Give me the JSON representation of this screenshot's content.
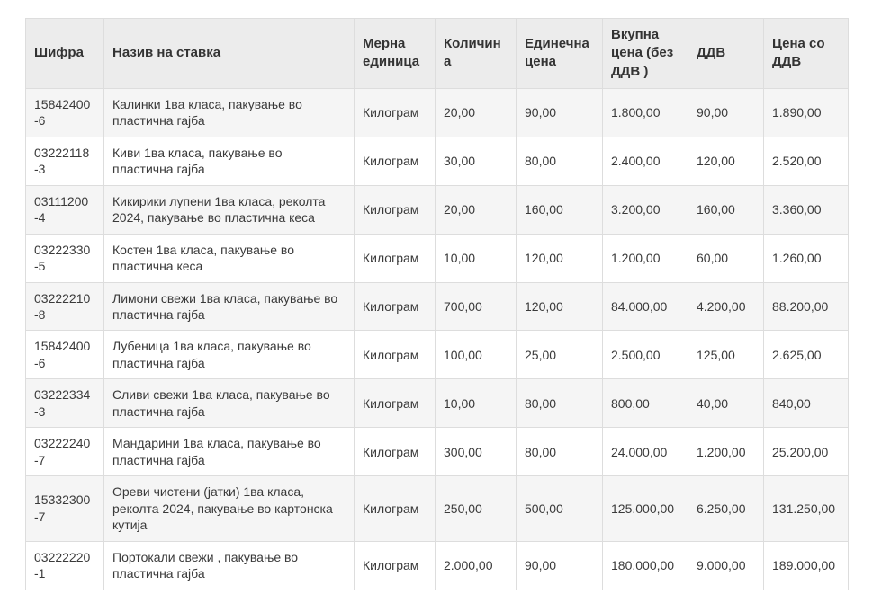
{
  "table": {
    "columns": [
      {
        "key": "code",
        "label": "Шифра"
      },
      {
        "key": "name",
        "label": "Назив на ставка"
      },
      {
        "key": "unit",
        "label": "Мерна единица"
      },
      {
        "key": "quantity",
        "label": "Количина"
      },
      {
        "key": "unit-price",
        "label": "Единечна цена"
      },
      {
        "key": "total-without-vat",
        "label": "Вкупна цена (без ДДВ )"
      },
      {
        "key": "vat",
        "label": "ДДВ"
      },
      {
        "key": "total-with-vat",
        "label": "Цена со ДДВ"
      }
    ],
    "rows": [
      [
        "15842400-6",
        "Калинки 1ва класа, пакување во пластична гајба",
        "Килограм",
        "20,00",
        "90,00",
        "1.800,00",
        "90,00",
        "1.890,00"
      ],
      [
        "03222118-3",
        "Киви 1ва класа, пакување во пластична гајба",
        "Килограм",
        "30,00",
        "80,00",
        "2.400,00",
        "120,00",
        "2.520,00"
      ],
      [
        "03111200-4",
        "Кикирики лупени 1ва класа, реколта 2024, пакување во пластична кеса",
        "Килограм",
        "20,00",
        "160,00",
        "3.200,00",
        "160,00",
        "3.360,00"
      ],
      [
        "03222330-5",
        "Костен 1ва класа, пакување во пластична кеса",
        "Килограм",
        "10,00",
        "120,00",
        "1.200,00",
        "60,00",
        "1.260,00"
      ],
      [
        "03222210-8",
        "Лимони свежи 1ва класа, пакување во пластична гајба",
        "Килограм",
        "700,00",
        "120,00",
        "84.000,00",
        "4.200,00",
        "88.200,00"
      ],
      [
        "15842400-6",
        "Лубеница 1ва класа, пакување во пластична гајба",
        "Килограм",
        "100,00",
        "25,00",
        "2.500,00",
        "125,00",
        "2.625,00"
      ],
      [
        "03222334-3",
        "Сливи свежи 1ва класа, пакување во пластична гајба",
        "Килограм",
        "10,00",
        "80,00",
        "800,00",
        "40,00",
        "840,00"
      ],
      [
        "03222240-7",
        "Мандарини 1ва класа, пакување во пластична гајба",
        "Килограм",
        "300,00",
        "80,00",
        "24.000,00",
        "1.200,00",
        "25.200,00"
      ],
      [
        "15332300-7",
        "Ореви чистени (јатки) 1ва класа, реколта 2024, пакување во картонска кутија",
        "Килограм",
        "250,00",
        "500,00",
        "125.000,00",
        "6.250,00",
        "131.250,00"
      ],
      [
        "03222220-1",
        "Портокали свежи , пакување во пластична гајба",
        "Килограм",
        "2.000,00",
        "90,00",
        "180.000,00",
        "9.000,00",
        "189.000,00"
      ]
    ]
  },
  "colors": {
    "header_bg": "#ececec",
    "stripe_bg": "#f5f5f5",
    "border": "#dddddd",
    "text": "#3a3a3a"
  }
}
